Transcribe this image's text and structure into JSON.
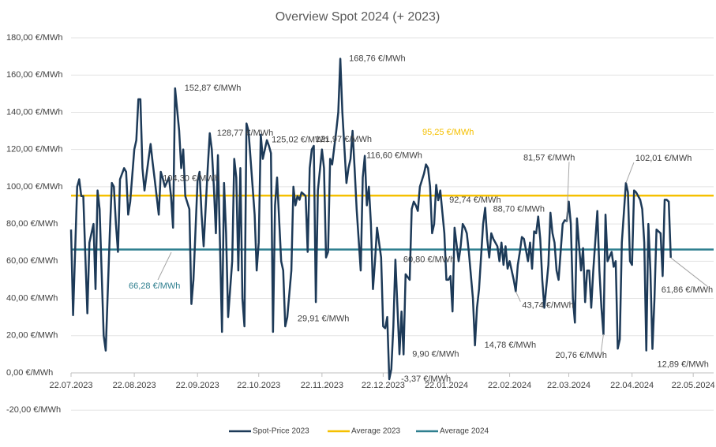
{
  "chart_data": {
    "type": "line",
    "title": "Overview Spot 2024 (+ 2023)",
    "xlim": [
      "22.07.2023",
      "01.06.2024"
    ],
    "xticks": [
      "22.07.2023",
      "22.08.2023",
      "22.09.2023",
      "22.10.2023",
      "22.11.2023",
      "22.12.2023",
      "22.01.2024",
      "22.02.2024",
      "22.03.2024",
      "22.04.2024",
      "22.05.2024"
    ],
    "ylim": [
      -20,
      180
    ],
    "yticks": [
      {
        "value": -20,
        "label": "-20,00 €/MWh"
      },
      {
        "value": 0,
        "label": "0,00 €/MWh"
      },
      {
        "value": 20,
        "label": "20,00 €/MWh"
      },
      {
        "value": 40,
        "label": "40,00 €/MWh"
      },
      {
        "value": 60,
        "label": "60,00 €/MWh"
      },
      {
        "value": 80,
        "label": "80,00 €/MWh"
      },
      {
        "value": 100,
        "label": "100,00 €/MWh"
      },
      {
        "value": 120,
        "label": "120,00 €/MWh"
      },
      {
        "value": 140,
        "label": "140,00 €/MWh"
      },
      {
        "value": 160,
        "label": "160,00 €/MWh"
      },
      {
        "value": 180,
        "label": "180,00 €/MWh"
      }
    ],
    "grid": true,
    "legend": "bottom",
    "x": [
      "22.07.2023",
      "23.07.2023",
      "25.07.2023",
      "26.07.2023",
      "27.07.2023",
      "28.07.2023",
      "29.07.2023",
      "30.07.2023",
      "31.07.2023",
      "02.08.2023",
      "03.08.2023",
      "04.08.2023",
      "05.08.2023",
      "07.08.2023",
      "08.08.2023",
      "10.08.2023",
      "11.08.2023",
      "12.08.2023",
      "13.08.2023",
      "14.08.2023",
      "15.08.2023",
      "17.08.2023",
      "18.08.2023",
      "19.08.2023",
      "20.08.2023",
      "22.08.2023",
      "23.08.2023",
      "24.08.2023",
      "25.08.2023",
      "26.08.2023",
      "27.08.2023",
      "29.08.2023",
      "30.08.2023",
      "31.08.2023",
      "01.09.2023",
      "03.09.2023",
      "04.09.2023",
      "05.09.2023",
      "06.09.2023",
      "08.09.2023",
      "09.09.2023",
      "10.09.2023",
      "11.09.2023",
      "13.09.2023",
      "14.09.2023",
      "15.09.2023",
      "16.09.2023",
      "18.09.2023",
      "19.09.2023",
      "20.09.2023",
      "22.09.2023",
      "23.09.2023",
      "24.09.2023",
      "25.09.2023",
      "27.09.2023",
      "28.09.2023",
      "29.09.2023",
      "30.09.2023",
      "01.10.2023",
      "02.10.2023",
      "04.10.2023",
      "05.10.2023",
      "06.10.2023",
      "07.10.2023",
      "09.10.2023",
      "10.10.2023",
      "11.10.2023",
      "12.10.2023",
      "13.10.2023",
      "14.10.2023",
      "15.10.2023",
      "16.10.2023",
      "17.10.2023",
      "19.10.2023",
      "20.10.2023",
      "21.10.2023",
      "22.10.2023",
      "23.10.2023",
      "24.10.2023",
      "26.10.2023",
      "27.10.2023",
      "28.10.2023",
      "29.10.2023",
      "30.10.2023",
      "31.10.2023",
      "02.11.2023",
      "03.11.2023",
      "04.11.2023",
      "05.11.2023",
      "07.11.2023",
      "08.11.2023",
      "09.11.2023",
      "10.11.2023",
      "11.11.2023",
      "12.11.2023",
      "14.11.2023",
      "15.11.2023",
      "16.11.2023",
      "17.11.2023",
      "18.11.2023",
      "19.11.2023",
      "20.11.2023",
      "22.11.2023",
      "23.11.2023",
      "24.11.2023",
      "25.11.2023",
      "26.11.2023",
      "27.11.2023",
      "29.11.2023",
      "30.11.2023",
      "01.12.2023",
      "02.12.2023",
      "04.12.2023",
      "05.12.2023",
      "06.12.2023",
      "07.12.2023",
      "08.12.2023",
      "09.12.2023",
      "11.12.2023",
      "12.12.2023",
      "13.12.2023",
      "14.12.2023",
      "15.12.2023",
      "16.12.2023",
      "17.12.2023",
      "18.12.2023",
      "19.12.2023",
      "21.12.2023",
      "22.12.2023",
      "23.12.2023",
      "24.12.2023",
      "25.12.2023",
      "26.12.2023",
      "27.12.2023",
      "28.12.2023",
      "30.12.2023",
      "31.12.2023",
      "01.01.2024",
      "02.01.2024",
      "04.01.2024",
      "05.01.2024",
      "06.01.2024",
      "07.01.2024",
      "08.01.2024",
      "09.01.2024",
      "11.01.2024",
      "12.01.2024",
      "13.01.2024",
      "14.01.2024",
      "15.01.2024",
      "16.01.2024",
      "17.01.2024",
      "18.01.2024",
      "19.01.2024",
      "21.01.2024",
      "22.01.2024",
      "23.01.2024",
      "24.01.2024",
      "25.01.2024",
      "26.01.2024",
      "28.01.2024",
      "29.01.2024",
      "30.01.2024",
      "31.01.2024",
      "01.02.2024",
      "02.02.2024",
      "04.02.2024",
      "05.02.2024",
      "06.02.2024",
      "07.02.2024",
      "09.02.2024",
      "10.02.2024",
      "11.02.2024",
      "12.02.2024",
      "13.02.2024",
      "14.02.2024",
      "16.02.2024",
      "17.02.2024",
      "18.02.2024",
      "19.02.2024",
      "20.02.2024",
      "21.02.2024",
      "22.02.2024",
      "24.02.2024",
      "25.02.2024",
      "26.02.2024",
      "27.02.2024",
      "28.02.2024",
      "29.02.2024",
      "02.03.2024",
      "03.03.2024",
      "04.03.2024",
      "05.03.2024",
      "06.03.2024",
      "07.03.2024",
      "08.03.2024",
      "09.03.2024",
      "10.03.2024",
      "12.03.2024",
      "13.03.2024",
      "14.03.2024",
      "15.03.2024",
      "16.03.2024",
      "17.03.2024",
      "19.03.2024",
      "20.03.2024",
      "21.03.2024",
      "22.03.2024",
      "23.03.2024",
      "24.03.2024",
      "25.03.2024",
      "26.03.2024",
      "28.03.2024",
      "29.03.2024",
      "30.03.2024",
      "31.03.2024",
      "01.04.2024",
      "02.04.2024",
      "03.04.2024",
      "05.04.2024",
      "06.04.2024",
      "07.04.2024",
      "08.04.2024",
      "09.04.2024",
      "10.04.2024",
      "12.04.2024",
      "13.04.2024",
      "14.04.2024",
      "15.04.2024",
      "16.04.2024",
      "17.04.2024",
      "19.04.2024",
      "20.04.2024",
      "21.04.2024",
      "22.04.2024",
      "23.04.2024",
      "24.04.2024",
      "26.04.2024",
      "27.04.2024",
      "28.04.2024",
      "29.04.2024",
      "30.04.2024",
      "01.05.2024",
      "02.05.2024",
      "03.05.2024",
      "04.05.2024",
      "06.05.2024",
      "07.05.2024",
      "08.05.2024",
      "09.05.2024",
      "10.05.2024",
      "11.05.2024"
    ],
    "series": [
      {
        "name": "Spot-Price 2023",
        "color": "#1d3a58",
        "values": [
          77,
          31,
          100,
          104,
          95,
          95,
          63,
          32,
          70,
          80,
          45,
          98,
          88,
          20,
          12,
          75,
          102,
          100,
          80,
          65,
          104,
          110,
          108,
          85,
          92,
          120,
          125,
          147,
          147,
          110,
          98,
          115,
          123,
          113,
          104,
          85,
          108,
          104.3,
          100,
          105,
          95,
          78,
          152.87,
          130,
          110,
          120,
          95,
          88,
          37,
          50,
          103,
          108,
          85,
          68,
          110,
          128.77,
          120,
          100,
          75,
          117,
          22,
          102,
          75,
          30,
          60,
          115,
          105,
          55,
          110,
          40,
          25,
          134,
          130,
          100,
          85,
          55,
          70,
          128,
          115,
          125.02,
          122,
          118,
          22,
          90,
          105,
          60,
          55,
          25,
          29.91,
          55,
          100,
          90,
          95,
          93,
          97,
          95,
          65,
          110,
          120,
          121.97,
          38,
          98,
          120,
          110,
          62,
          65,
          115,
          112,
          130,
          140,
          168.76,
          140,
          102,
          110,
          115,
          130,
          110,
          88,
          55,
          105,
          116.6,
          90,
          100,
          80,
          45,
          60,
          78,
          62,
          25,
          24,
          30,
          -3.37,
          2,
          25,
          60.8,
          10,
          33,
          9.9,
          53,
          50,
          88,
          92,
          90,
          87,
          100,
          107,
          112,
          110,
          100,
          75,
          80,
          101,
          92.74,
          98,
          75,
          50,
          50,
          52,
          33,
          78,
          60,
          68,
          80,
          78,
          75,
          65,
          40,
          14.78,
          35,
          45,
          80,
          88.7,
          72,
          62,
          75,
          72,
          68,
          60,
          70,
          58,
          68,
          56,
          60,
          50,
          43.74,
          58,
          65,
          73,
          72,
          60,
          70,
          56,
          76,
          75,
          84,
          72,
          50,
          35,
          58,
          86,
          75,
          70,
          55,
          50,
          80,
          82,
          81.57,
          92,
          80,
          40,
          27,
          83,
          55,
          67,
          38,
          55,
          55,
          35,
          55,
          87,
          55,
          35,
          20.76,
          85,
          60,
          65,
          57,
          60,
          13,
          18,
          70,
          102.01,
          97,
          60,
          58,
          98,
          97,
          93,
          88,
          70,
          12,
          80,
          55,
          12.89,
          40,
          77,
          75,
          52,
          93,
          93,
          92,
          61.86
        ]
      }
    ],
    "reference_lines": [
      {
        "name": "Average 2023",
        "color": "#f5c000",
        "value": 95.25,
        "label": "95,25 €/MWh"
      },
      {
        "name": "Average 2024",
        "color": "#2f7f8f",
        "value": 66.28,
        "label": "66,28 €/MWh"
      }
    ],
    "annotations": [
      {
        "x": "11.09.2023",
        "label": "152,87 €/MWh"
      },
      {
        "x": "28.09.2023",
        "label": "128,77 €/MWh"
      },
      {
        "x": "26.10.2023",
        "label": "125,02 €/MWh"
      },
      {
        "x": "18.11.2023",
        "label": "121,97 €/MWh"
      },
      {
        "x": "01.12.2023",
        "label": "168,76 €/MWh"
      },
      {
        "x": "13.12.2023",
        "label": "116,60 €/MWh"
      },
      {
        "x": "05.09.2023",
        "label": "104,30 €/MWh"
      },
      {
        "x": "05.11.2023",
        "label": "29,91 €/MWh"
      },
      {
        "x": "28.12.2023",
        "label": "60,80 €/MWh"
      },
      {
        "x": "25.12.2023",
        "label": "-3,37 €/MWh"
      },
      {
        "x": "01.01.2024",
        "label": "9,90 €/MWh"
      },
      {
        "x": "18.01.2024",
        "label": "92,74 €/MWh"
      },
      {
        "x": "05.02.2024",
        "label": "14,78 €/MWh"
      },
      {
        "x": "10.02.2024",
        "label": "88,70 €/MWh"
      },
      {
        "x": "25.02.2024",
        "label": "43,74 €/MWh"
      },
      {
        "x": "21.03.2024",
        "label": "81,57 €/MWh"
      },
      {
        "x": "08.04.2024",
        "label": "20,76 €/MWh"
      },
      {
        "x": "19.04.2024",
        "label": "102,01 €/MWh"
      },
      {
        "x": "02.05.2024",
        "label": "12,89 €/MWh"
      },
      {
        "x": "11.05.2024",
        "label": "61,86 €/MWh"
      }
    ]
  }
}
